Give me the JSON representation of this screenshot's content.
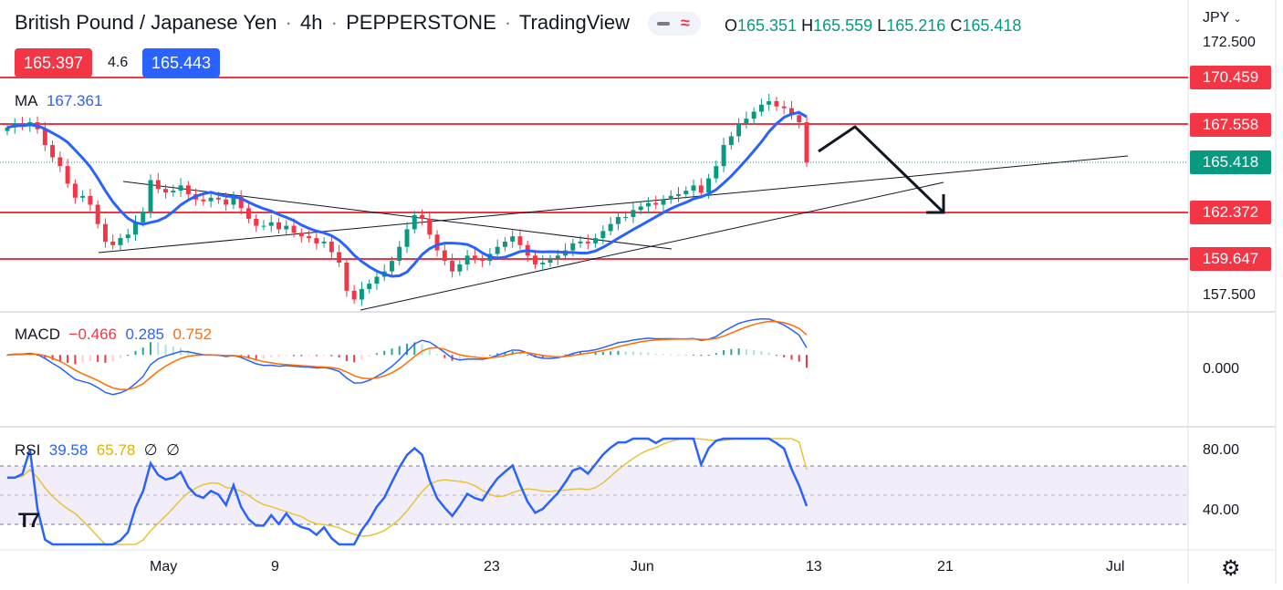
{
  "header": {
    "symbol": "British Pound / Japanese Yen",
    "interval": "4h",
    "exchange": "PEPPERSTONE",
    "platform": "TradingView",
    "ohlc": {
      "open_label": "O",
      "open": "165.351",
      "high_label": "H",
      "high": "165.559",
      "low_label": "L",
      "low": "165.216",
      "close_label": "C",
      "close": "165.418"
    },
    "bid": "165.397",
    "spread": "4.6",
    "ask": "165.443",
    "currency": "JPY"
  },
  "indicators": {
    "ma": {
      "name": "MA",
      "value": "167.361"
    },
    "macd": {
      "name": "MACD",
      "hist": "−0.466",
      "macd": "0.285",
      "signal": "0.752"
    },
    "rsi": {
      "name": "RSI",
      "value": "39.58",
      "ma": "65.78",
      "v3": "∅",
      "v4": "∅"
    }
  },
  "price_axis": {
    "ticks": [
      "172.500",
      "157.500"
    ],
    "levels": [
      {
        "label": "170.459",
        "color": "#f23645"
      },
      {
        "label": "167.558",
        "color": "#f23645"
      },
      {
        "label": "165.418",
        "color": "#089981"
      },
      {
        "label": "162.372",
        "color": "#f23645"
      },
      {
        "label": "159.647",
        "color": "#f23645"
      }
    ]
  },
  "macd_axis": {
    "ticks": [
      "0.000"
    ]
  },
  "rsi_axis": {
    "ticks": [
      "80.00",
      "40.00"
    ]
  },
  "time_axis": {
    "labels": [
      "May",
      "9",
      "23",
      "Jun",
      "13",
      "21",
      "Jul"
    ]
  },
  "colors": {
    "up": "#089981",
    "down": "#f23645",
    "ma": "#2962ff",
    "macd": "#2962ff",
    "signal": "#ff6d00",
    "rsi": "#2962ff",
    "rsi_ma": "#e8c33a"
  },
  "chart_data": {
    "type": "candlestick",
    "title": "British Pound / Japanese Yen · 4h · PEPPERSTONE",
    "price_range": [
      157.0,
      173.0
    ],
    "horizontal_levels": [
      170.459,
      167.558,
      162.372,
      159.647
    ],
    "last_price": 165.418,
    "closes": [
      167.4,
      167.6,
      167.5,
      167.7,
      167.3,
      166.4,
      165.7,
      165.2,
      164.2,
      163.4,
      163.5,
      163.0,
      161.9,
      160.9,
      160.7,
      161.1,
      161.3,
      162.0,
      162.6,
      164.4,
      163.9,
      163.7,
      163.8,
      164.1,
      163.6,
      163.3,
      163.2,
      163.4,
      163.3,
      163.0,
      163.5,
      162.8,
      162.2,
      161.8,
      161.8,
      162.0,
      161.6,
      161.8,
      161.4,
      161.2,
      161.1,
      160.8,
      160.9,
      160.3,
      159.7,
      158.1,
      157.6,
      158.2,
      158.5,
      158.9,
      159.2,
      159.8,
      160.6,
      161.6,
      162.4,
      162.2,
      161.3,
      160.4,
      159.8,
      159.2,
      159.6,
      160.1,
      159.9,
      159.8,
      160.2,
      160.6,
      160.9,
      161.2,
      160.7,
      160.1,
      159.6,
      159.7,
      159.9,
      160.1,
      160.4,
      160.8,
      160.9,
      160.8,
      161.1,
      161.5,
      161.9,
      162.3,
      162.3,
      162.7,
      162.9,
      163.1,
      163.0,
      163.3,
      163.5,
      163.6,
      163.8,
      164.1,
      163.7,
      164.5,
      165.2,
      166.4,
      166.9,
      167.6,
      167.9,
      168.3,
      168.7,
      168.9,
      168.6,
      168.5,
      168.1,
      167.7,
      165.4
    ],
    "macd": {
      "range": [
        -2.6,
        1.4
      ],
      "zero": 0.0
    },
    "rsi": {
      "range": [
        10,
        90
      ],
      "upper": 70,
      "middle": 50,
      "lower": 30,
      "last": 39.58,
      "ma_last": 65.78
    }
  }
}
